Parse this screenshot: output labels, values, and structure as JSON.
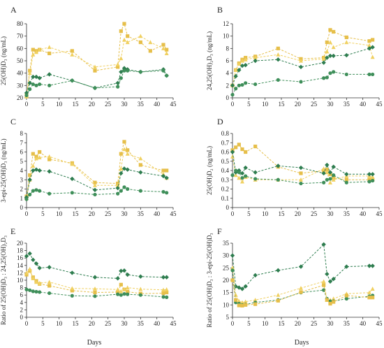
{
  "figure": {
    "xlabel": "Days",
    "colors": {
      "dark_green": "#2e7d4f",
      "mid_green": "#3f8f5a",
      "gold": "#e6bf4a",
      "pale_gold": "#f0d060",
      "axis": "#333333"
    }
  },
  "chart_data": [
    {
      "type": "line",
      "panel_label": "A",
      "ylabel": "25(OH)D₃ (ng/mL)",
      "xlim": [
        0,
        45
      ],
      "ylim": [
        20,
        80
      ],
      "xticks": [
        0,
        5,
        10,
        15,
        20,
        25,
        30,
        35,
        40,
        45
      ],
      "yticks": [
        20,
        30,
        40,
        50,
        60,
        70,
        80
      ],
      "grid": false,
      "series": [
        {
          "marker": "square",
          "color": "#e6bf4a",
          "x": [
            0,
            1,
            2,
            3,
            4,
            7,
            14,
            21,
            28,
            29,
            30,
            31,
            35,
            38,
            42,
            43
          ],
          "y": [
            22,
            42,
            59,
            58,
            59,
            56,
            58,
            42,
            45,
            74,
            80,
            70,
            65,
            58,
            63,
            59
          ]
        },
        {
          "marker": "triangle",
          "color": "#f0d060",
          "x": [
            0,
            1,
            2,
            3,
            4,
            7,
            14,
            21,
            28,
            29,
            30,
            31,
            35,
            38,
            42,
            43
          ],
          "y": [
            21,
            40,
            55,
            57,
            59,
            61,
            55,
            45,
            47,
            52,
            67,
            65,
            70,
            65,
            60,
            56
          ]
        },
        {
          "marker": "diamond",
          "color": "#2e7d4f",
          "x": [
            0,
            1,
            2,
            3,
            4,
            7,
            14,
            21,
            28,
            29,
            30,
            31,
            35,
            42,
            43
          ],
          "y": [
            24,
            32,
            37,
            37,
            36,
            39,
            34,
            28,
            32,
            41,
            44,
            43,
            41,
            43,
            38
          ]
        },
        {
          "marker": "circle",
          "color": "#3f8f5a",
          "x": [
            0,
            1,
            2,
            3,
            4,
            7,
            14,
            21,
            28,
            29,
            30,
            31,
            35,
            42,
            43
          ],
          "y": [
            22,
            27,
            31,
            30,
            31,
            30,
            34,
            28,
            29,
            36,
            42,
            42,
            41,
            42,
            38
          ]
        }
      ]
    },
    {
      "type": "line",
      "panel_label": "B",
      "ylabel": "24,25(OH)₂D₃ (ng/mL)",
      "xlim": [
        0,
        45
      ],
      "ylim": [
        0,
        12
      ],
      "xticks": [
        0,
        5,
        10,
        15,
        20,
        25,
        30,
        35,
        40,
        45
      ],
      "yticks": [
        0,
        2,
        4,
        6,
        8,
        10,
        12
      ],
      "grid": false,
      "series": [
        {
          "marker": "square",
          "color": "#e6bf4a",
          "x": [
            0,
            1,
            2,
            3,
            4,
            7,
            14,
            21,
            28,
            29,
            30,
            31,
            35,
            42,
            43
          ],
          "y": [
            2,
            4.5,
            5.6,
            6.2,
            6.5,
            6.7,
            8,
            6.3,
            6.5,
            9,
            11,
            10.7,
            9.8,
            9.2,
            9.4
          ]
        },
        {
          "marker": "triangle",
          "color": "#f0d060",
          "x": [
            0,
            1,
            2,
            3,
            4,
            7,
            14,
            21,
            28,
            29,
            30,
            31,
            35,
            42,
            43
          ],
          "y": [
            2,
            4.5,
            5.5,
            6,
            6.2,
            6.5,
            7,
            6,
            6.3,
            7.5,
            9,
            8.2,
            9,
            8.5,
            6.6
          ]
        },
        {
          "marker": "diamond",
          "color": "#2e7d4f",
          "x": [
            0,
            1,
            2,
            3,
            4,
            7,
            14,
            21,
            28,
            29,
            30,
            31,
            35,
            42,
            43
          ],
          "y": [
            2,
            3.5,
            4.5,
            5.2,
            5.3,
            6,
            6.2,
            5,
            5.7,
            6.5,
            6.8,
            6.8,
            6.9,
            8,
            8.2
          ]
        },
        {
          "marker": "circle",
          "color": "#3f8f5a",
          "x": [
            0,
            1,
            2,
            3,
            4,
            7,
            14,
            21,
            28,
            29,
            30,
            31,
            35,
            42,
            43
          ],
          "y": [
            0.5,
            1.5,
            2,
            2.1,
            2.4,
            2.2,
            2.9,
            2.6,
            3.2,
            3.3,
            4,
            4.2,
            3.8,
            3.8,
            3.8
          ]
        }
      ]
    },
    {
      "type": "line",
      "panel_label": "C",
      "ylabel": "3-epi-25(OH)D₃ (ng/mL)",
      "xlim": [
        0,
        45
      ],
      "ylim": [
        0,
        8
      ],
      "xticks": [
        0,
        5,
        10,
        15,
        20,
        25,
        30,
        35,
        40,
        45
      ],
      "yticks": [
        0,
        1,
        2,
        3,
        4,
        5,
        6,
        7,
        8
      ],
      "grid": false,
      "series": [
        {
          "marker": "square",
          "color": "#e6bf4a",
          "x": [
            0,
            1,
            2,
            3,
            4,
            7,
            14,
            21,
            28,
            29,
            30,
            31,
            35,
            42,
            43
          ],
          "y": [
            1.2,
            3.5,
            5.8,
            5.5,
            6,
            5.2,
            4.8,
            2.7,
            2.6,
            5.8,
            7.1,
            6.2,
            4.6,
            4,
            4
          ]
        },
        {
          "marker": "triangle",
          "color": "#f0d060",
          "x": [
            0,
            1,
            2,
            3,
            4,
            7,
            14,
            21,
            28,
            29,
            30,
            31,
            35,
            42,
            43
          ],
          "y": [
            1,
            3,
            4.5,
            5.3,
            5.4,
            5.5,
            4.7,
            2.4,
            2.4,
            4.2,
            6.3,
            5.8,
            5.3,
            3.6,
            3.2
          ]
        },
        {
          "marker": "diamond",
          "color": "#2e7d4f",
          "x": [
            0,
            1,
            2,
            3,
            4,
            7,
            14,
            21,
            28,
            29,
            30,
            31,
            35,
            42,
            43
          ],
          "y": [
            1.1,
            3,
            4,
            4.1,
            4,
            3.9,
            3.1,
            1.9,
            2.1,
            3.7,
            4.2,
            4.1,
            3.8,
            3.4,
            3.2
          ]
        },
        {
          "marker": "circle",
          "color": "#3f8f5a",
          "x": [
            0,
            1,
            2,
            3,
            4,
            7,
            14,
            21,
            28,
            29,
            30,
            31,
            35,
            42,
            43
          ],
          "y": [
            0.9,
            1.4,
            1.8,
            1.9,
            1.8,
            1.5,
            1.6,
            1.4,
            1.5,
            1.8,
            2.2,
            2,
            1.8,
            1.7,
            1.6
          ]
        }
      ]
    },
    {
      "type": "line",
      "panel_label": "D",
      "ylabel": "25(OH)D₂ (ng/mL)",
      "xlim": [
        0,
        45
      ],
      "ylim": [
        0,
        0.8
      ],
      "xticks": [
        0,
        5,
        10,
        15,
        20,
        25,
        30,
        35,
        40,
        45
      ],
      "yticks": [
        0,
        0.1,
        0.2,
        0.3,
        0.4,
        0.5,
        0.6,
        0.7,
        0.8
      ],
      "grid": false,
      "series": [
        {
          "marker": "square",
          "color": "#e6bf4a",
          "x": [
            0,
            1,
            2,
            3,
            4,
            7,
            14,
            21,
            28,
            29,
            30,
            31,
            35,
            42,
            43
          ],
          "y": [
            0.62,
            0.65,
            0.68,
            0.63,
            0.6,
            0.66,
            0.44,
            0.37,
            0.4,
            0.41,
            0.36,
            0.32,
            0.3,
            0.3,
            0.3
          ]
        },
        {
          "marker": "triangle",
          "color": "#f0d060",
          "x": [
            0,
            1,
            2,
            3,
            4,
            7,
            14,
            21,
            28,
            29,
            30,
            31,
            35,
            42,
            43
          ],
          "y": [
            0.55,
            0.35,
            0.32,
            0.28,
            0.33,
            0.3,
            0.3,
            0.3,
            0.42,
            0.38,
            0.27,
            0.3,
            0.34,
            0.34,
            0.33
          ]
        },
        {
          "marker": "diamond",
          "color": "#2e7d4f",
          "x": [
            0,
            1,
            2,
            3,
            4,
            7,
            14,
            21,
            28,
            29,
            30,
            31,
            35,
            42,
            43
          ],
          "y": [
            0.6,
            0.38,
            0.4,
            0.37,
            0.43,
            0.38,
            0.45,
            0.43,
            0.37,
            0.46,
            0.38,
            0.44,
            0.36,
            0.36,
            0.36
          ]
        },
        {
          "marker": "circle",
          "color": "#3f8f5a",
          "x": [
            0,
            1,
            2,
            3,
            4,
            7,
            14,
            21,
            28,
            29,
            30,
            31,
            35,
            42,
            43
          ],
          "y": [
            0.35,
            0.4,
            0.38,
            0.32,
            0.34,
            0.31,
            0.3,
            0.26,
            0.27,
            0.3,
            0.31,
            0.35,
            0.27,
            0.28,
            0.29
          ]
        }
      ]
    },
    {
      "type": "line",
      "panel_label": "E",
      "ylabel": "Ratio of 25(OH)D₃ : 24,25(OH)₂D₃",
      "xlim": [
        0,
        45
      ],
      "ylim": [
        0,
        20
      ],
      "xticks": [
        0,
        5,
        10,
        15,
        20,
        25,
        30,
        35,
        40,
        45
      ],
      "yticks": [
        0,
        2,
        4,
        6,
        8,
        10,
        12,
        14,
        16,
        18,
        20
      ],
      "grid": false,
      "series": [
        {
          "marker": "diamond",
          "color": "#2e7d4f",
          "x": [
            0,
            1,
            2,
            3,
            4,
            7,
            14,
            21,
            28,
            29,
            30,
            31,
            35,
            42,
            43
          ],
          "y": [
            16.5,
            17.2,
            15.5,
            14.5,
            13.3,
            13.5,
            12,
            10.8,
            10.5,
            12.5,
            12.6,
            11.5,
            11,
            10.8,
            10.8
          ]
        },
        {
          "marker": "square",
          "color": "#e6bf4a",
          "x": [
            0,
            1,
            2,
            3,
            4,
            7,
            14,
            21,
            28,
            29,
            30,
            31,
            35,
            42,
            43
          ],
          "y": [
            11.5,
            12.5,
            10.8,
            9.8,
            9,
            8.5,
            7.2,
            6.7,
            6.8,
            8.8,
            7.5,
            6.9,
            6.4,
            6.5,
            6.7
          ]
        },
        {
          "marker": "triangle",
          "color": "#f0d060",
          "x": [
            0,
            1,
            2,
            3,
            4,
            7,
            14,
            21,
            28,
            29,
            30,
            31,
            35,
            42,
            43
          ],
          "y": [
            12,
            13,
            10.5,
            9.5,
            9.2,
            9.5,
            7.8,
            7.7,
            7.5,
            7,
            7.5,
            8,
            7.6,
            7.4,
            7.5
          ]
        },
        {
          "marker": "circle",
          "color": "#3f8f5a",
          "x": [
            0,
            1,
            2,
            3,
            4,
            7,
            14,
            21,
            28,
            29,
            30,
            31,
            35,
            42,
            43
          ],
          "y": [
            7.5,
            7.3,
            7,
            6.9,
            6.8,
            6.5,
            5.8,
            5.7,
            6.2,
            6,
            6.3,
            6.2,
            6,
            5.5,
            5.4
          ]
        }
      ]
    },
    {
      "type": "line",
      "panel_label": "F",
      "ylabel": "Ratio of 25(OH)D₃ : 3-epi-25(OH)D₃",
      "xlim": [
        0,
        45
      ],
      "ylim": [
        5,
        35
      ],
      "xticks": [
        0,
        5,
        10,
        15,
        20,
        25,
        30,
        35,
        40,
        45
      ],
      "yticks": [
        5,
        10,
        15,
        20,
        25,
        30,
        35
      ],
      "grid": false,
      "series": [
        {
          "marker": "diamond",
          "color": "#2e7d4f",
          "x": [
            0,
            1,
            2,
            3,
            4,
            7,
            14,
            21,
            28,
            29,
            30,
            31,
            35,
            42,
            43
          ],
          "y": [
            30,
            17.5,
            17,
            16.5,
            17.5,
            22,
            24,
            25.5,
            34.5,
            22.5,
            19.5,
            20.5,
            25.5,
            25.8,
            25.8
          ]
        },
        {
          "marker": "triangle",
          "color": "#f0d060",
          "x": [
            0,
            1,
            2,
            3,
            4,
            7,
            14,
            21,
            28,
            29,
            30,
            31,
            35,
            42,
            43
          ],
          "y": [
            25,
            14,
            11.5,
            11,
            11.3,
            12,
            14,
            16.8,
            19.5,
            12,
            12,
            12.5,
            14.5,
            15,
            16.5
          ]
        },
        {
          "marker": "circle",
          "color": "#3f8f5a",
          "x": [
            0,
            1,
            2,
            3,
            4,
            7,
            14,
            21,
            28,
            29,
            30,
            31,
            35,
            42,
            43
          ],
          "y": [
            24,
            11,
            10.5,
            10,
            10.2,
            11,
            12,
            15,
            16,
            12.5,
            11.5,
            11.5,
            12.5,
            13.5,
            13.8
          ]
        },
        {
          "marker": "square",
          "color": "#e6bf4a",
          "x": [
            0,
            1,
            2,
            3,
            4,
            7,
            14,
            21,
            28,
            29,
            30,
            31,
            35,
            42,
            43
          ],
          "y": [
            20,
            12,
            9.8,
            9.7,
            10,
            10.3,
            11.7,
            15.2,
            18,
            12,
            10.5,
            11.2,
            13.8,
            13,
            13
          ]
        }
      ]
    }
  ]
}
